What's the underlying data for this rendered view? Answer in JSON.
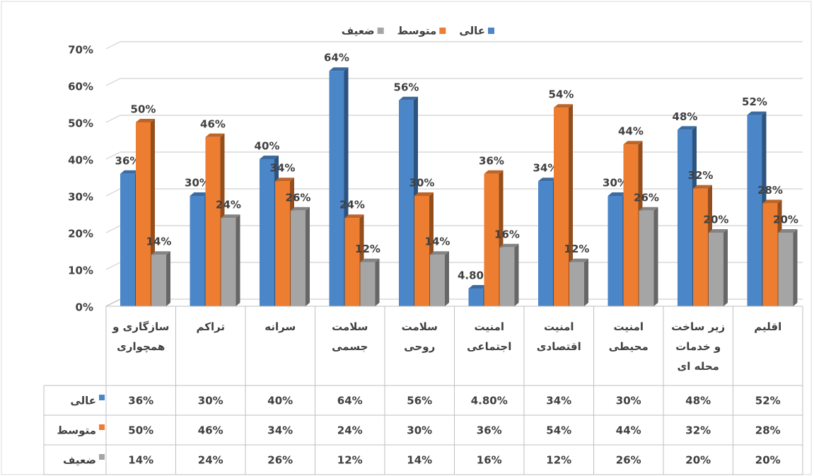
{
  "chart_data": {
    "type": "bar3d",
    "categories": [
      "سازگاری و همچواری",
      "تراکم",
      "سرانه",
      "سلامت جسمی",
      "سلامت روحی",
      "امنیت اجتماعی",
      "امنیت اقتصادی",
      "امنیت محیطی",
      "زیر ساخت و خدمات محله ای",
      "اقلیم"
    ],
    "series": [
      {
        "name": "عالی",
        "color": "#4a86c8",
        "values": [
          36,
          30,
          40,
          64,
          56,
          4.8,
          34,
          30,
          48,
          52
        ],
        "value_labels": [
          "36%",
          "30%",
          "40%",
          "64%",
          "56%",
          "4.80%",
          "34%",
          "30%",
          "48%",
          "52%"
        ]
      },
      {
        "name": "متوسط",
        "color": "#ed7d31",
        "values": [
          50,
          46,
          34,
          24,
          30,
          36,
          54,
          44,
          32,
          28
        ],
        "value_labels": [
          "50%",
          "46%",
          "34%",
          "24%",
          "30%",
          "36%",
          "54%",
          "44%",
          "32%",
          "28%"
        ]
      },
      {
        "name": "ضعیف",
        "color": "#a5a5a5",
        "values": [
          14,
          24,
          26,
          12,
          14,
          16,
          12,
          26,
          20,
          20
        ],
        "value_labels": [
          "14%",
          "24%",
          "26%",
          "12%",
          "14%",
          "16%",
          "12%",
          "26%",
          "20%",
          "20%"
        ]
      }
    ],
    "ylim": [
      0,
      70
    ],
    "yticks": [
      {
        "value": 0,
        "label": "0%"
      },
      {
        "value": 10,
        "label": "10%"
      },
      {
        "value": 20,
        "label": "20%"
      },
      {
        "value": 30,
        "label": "30%"
      },
      {
        "value": 40,
        "label": "40%"
      },
      {
        "value": 50,
        "label": "50%"
      },
      {
        "value": 60,
        "label": "60%"
      },
      {
        "value": 70,
        "label": "70%"
      }
    ],
    "grid": true,
    "legend": "top"
  }
}
